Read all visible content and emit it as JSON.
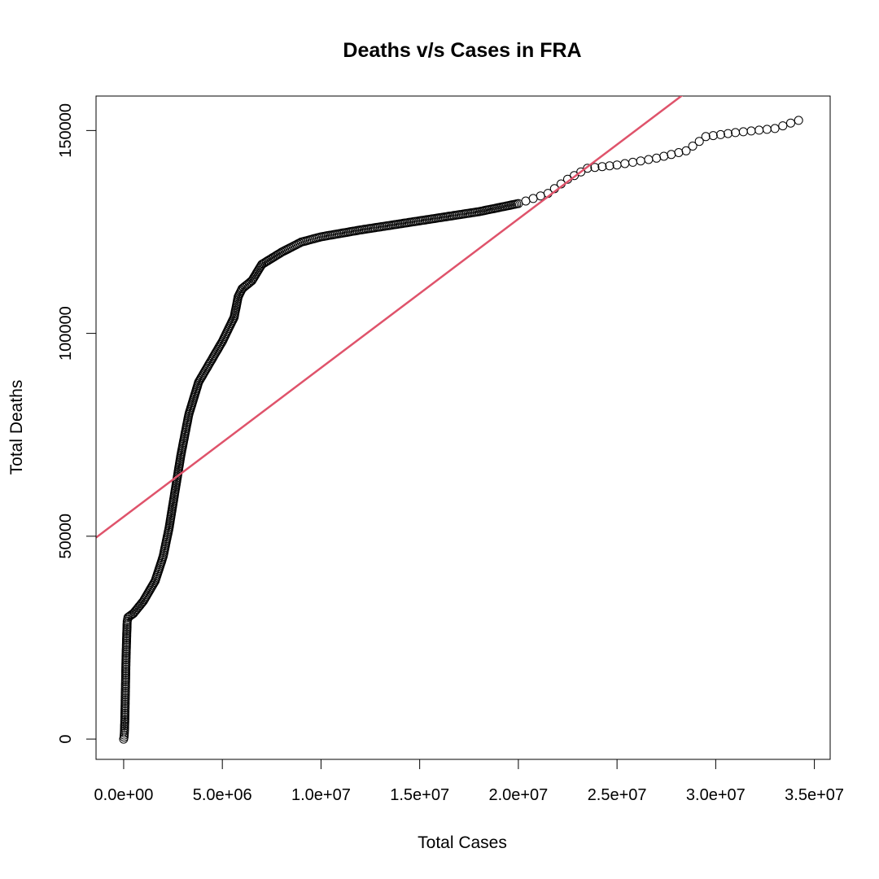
{
  "chart_data": {
    "type": "scatter",
    "title": "Deaths v/s Cases in FRA",
    "xlabel": "Total Cases",
    "ylabel": "Total Deaths",
    "xlim": [
      -1400000,
      35800000
    ],
    "ylim": [
      -5000,
      158500
    ],
    "x_ticks": [
      0,
      5000000,
      10000000,
      15000000,
      20000000,
      25000000,
      30000000,
      35000000
    ],
    "x_tick_labels": [
      "0.0e+00",
      "5.0e+06",
      "1.0e+07",
      "1.5e+07",
      "2.0e+07",
      "2.5e+07",
      "3.0e+07",
      "3.5e+07"
    ],
    "y_ticks": [
      0,
      50000,
      100000,
      150000
    ],
    "y_tick_labels": [
      "0",
      "50000",
      "100000",
      "150000"
    ],
    "grid": false,
    "point_color": "#000000",
    "regression_color": "#DF536B",
    "regression_line": {
      "intercept": 54800,
      "slope": 0.00367
    },
    "curve_points": [
      [
        0,
        0
      ],
      [
        20000,
        500
      ],
      [
        40000,
        2000
      ],
      [
        60000,
        5000
      ],
      [
        80000,
        10000
      ],
      [
        100000,
        15000
      ],
      [
        120000,
        20000
      ],
      [
        150000,
        25000
      ],
      [
        180000,
        29000
      ],
      [
        220000,
        30000
      ],
      [
        500000,
        31000
      ],
      [
        1000000,
        34000
      ],
      [
        1600000,
        39000
      ],
      [
        2000000,
        45000
      ],
      [
        2300000,
        52000
      ],
      [
        2600000,
        61000
      ],
      [
        2900000,
        70000
      ],
      [
        3300000,
        80000
      ],
      [
        3800000,
        88000
      ],
      [
        4400000,
        93000
      ],
      [
        5000000,
        98000
      ],
      [
        5600000,
        104000
      ],
      [
        5800000,
        109000
      ],
      [
        6000000,
        111000
      ],
      [
        6500000,
        113000
      ],
      [
        7000000,
        117000
      ],
      [
        8000000,
        120000
      ],
      [
        9000000,
        122500
      ],
      [
        10000000,
        123800
      ],
      [
        12000000,
        125500
      ],
      [
        14000000,
        127000
      ],
      [
        16000000,
        128500
      ],
      [
        18000000,
        130000
      ],
      [
        20000000,
        132000
      ],
      [
        21500000,
        134500
      ],
      [
        22500000,
        138000
      ],
      [
        23500000,
        140700
      ],
      [
        25000000,
        141500
      ],
      [
        27000000,
        143200
      ],
      [
        28500000,
        145000
      ],
      [
        29500000,
        148500
      ],
      [
        31000000,
        149500
      ],
      [
        33000000,
        150500
      ],
      [
        34200000,
        152500
      ]
    ]
  }
}
